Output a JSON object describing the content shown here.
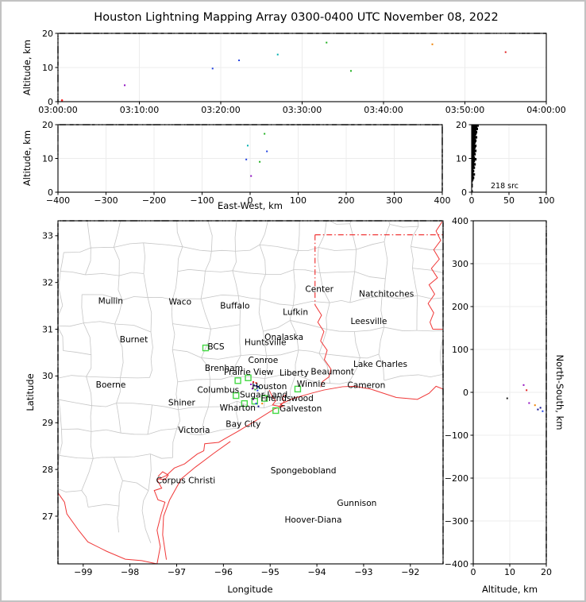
{
  "title": "Houston Lightning Mapping Array 0300-0400 UTC November 08, 2022",
  "palette": {
    "frame": "#000000",
    "grid": "#ececec",
    "county": "#c6c6c6",
    "border_red": "#f03838",
    "station_green": "#44d944",
    "noise_black": "#000000"
  },
  "chart_data": [
    {
      "id": "time-altitude",
      "type": "scatter",
      "xlabel": "",
      "ylabel": "Altitude, km",
      "x_range": [
        0,
        3600
      ],
      "x_tick_values": [
        0,
        600,
        1200,
        1800,
        2400,
        3000,
        3600
      ],
      "x_tick_labels": [
        "03:00:00",
        "03:10:00",
        "03:20:00",
        "03:30:00",
        "03:40:00",
        "03:50:00",
        "04:00:00"
      ],
      "y_range": [
        0,
        20
      ],
      "y_tick_values": [
        0,
        10,
        20
      ],
      "y_tick_labels": [
        "0",
        "10",
        "20"
      ],
      "noise_edges": [
        "top",
        "left",
        "bottom"
      ],
      "points": [
        [
          492,
          4.8,
          "#9010c0"
        ],
        [
          1140,
          9.7,
          "#2040e0"
        ],
        [
          1335,
          12.1,
          "#2040e0"
        ],
        [
          1620,
          13.8,
          "#00b0b0"
        ],
        [
          1980,
          17.3,
          "#20b020"
        ],
        [
          2160,
          9.0,
          "#20b020"
        ],
        [
          2760,
          16.8,
          "#f08000"
        ],
        [
          3300,
          14.5,
          "#e02020"
        ]
      ],
      "corner_dot": [
        30,
        0.4,
        "#ff2020"
      ]
    },
    {
      "id": "ew-altitude",
      "type": "scatter",
      "xlabel": "East-West, km",
      "ylabel": "Altitude, km",
      "x_range": [
        -400,
        400
      ],
      "x_tick_values": [
        -400,
        -300,
        -200,
        -100,
        0,
        100,
        200,
        300,
        400
      ],
      "x_tick_labels": [
        "−400",
        "−300",
        "−200",
        "−100",
        "0",
        "100",
        "200",
        "300",
        "400"
      ],
      "y_range": [
        0,
        20
      ],
      "y_tick_values": [
        0,
        10,
        20
      ],
      "y_tick_labels": [
        "0",
        "10",
        "20"
      ],
      "noise_edges": [
        "top",
        "right",
        "left-upper"
      ],
      "points": [
        [
          30,
          17.3,
          "#20b020"
        ],
        [
          35,
          12.1,
          "#2040e0"
        ],
        [
          -8,
          9.7,
          "#2040e0"
        ],
        [
          20,
          9.0,
          "#20b020"
        ],
        [
          2,
          4.8,
          "#9010c0"
        ],
        [
          -5,
          13.8,
          "#00b0b0"
        ]
      ]
    },
    {
      "id": "altitude-histogram",
      "type": "histogram-profile",
      "annotation": "218 src",
      "xlabel": "",
      "ylabel": "",
      "x_range": [
        0,
        100
      ],
      "x_tick_values": [
        0,
        50,
        100
      ],
      "x_tick_labels": [
        "0",
        "50",
        "100"
      ],
      "y_range": [
        0,
        20
      ],
      "y_tick_values": [
        0,
        10,
        20
      ],
      "y_tick_labels": [
        "0",
        "10",
        "20"
      ],
      "bin_km": 0.5,
      "counts_bottom_to_top": [
        1,
        0,
        0,
        1,
        1,
        0,
        1,
        2,
        3,
        2,
        4,
        2,
        3,
        2,
        4,
        3,
        5,
        3,
        4,
        6,
        4,
        3,
        5,
        4,
        6,
        4,
        5,
        6,
        4,
        5,
        6,
        5,
        7,
        5,
        6,
        7,
        6,
        8,
        7,
        9
      ]
    },
    {
      "id": "map",
      "type": "map-scatter",
      "xlabel": "Longitude",
      "ylabel": "Latitude",
      "lon_range": [
        -99.54,
        -91.3
      ],
      "lat_range": [
        25.98,
        33.32
      ],
      "x_tick_values": [
        -99,
        -98,
        -97,
        -96,
        -95,
        -94,
        -93,
        -92
      ],
      "x_tick_labels": [
        "−99",
        "−98",
        "−97",
        "−96",
        "−95",
        "−94",
        "−93",
        "−92"
      ],
      "y_tick_values": [
        27,
        28,
        29,
        30,
        31,
        32,
        33
      ],
      "y_tick_labels": [
        "27",
        "28",
        "29",
        "30",
        "31",
        "32",
        "33"
      ],
      "noise_edges": [
        "left",
        "right",
        "top"
      ],
      "county_grid": {
        "seed": 7,
        "cols": 14,
        "rows": 14,
        "jitter": 0.13
      },
      "cities": [
        {
          "n": "Mullin",
          "lon": -98.68,
          "lat": 31.6,
          "c": "#ffab7e"
        },
        {
          "n": "Waco",
          "lon": -97.17,
          "lat": 31.59,
          "c": "#1a1a1a"
        },
        {
          "n": "Buffalo",
          "lon": -96.07,
          "lat": 31.5,
          "c": "#1a1a1a"
        },
        {
          "n": "Lufkin",
          "lon": -94.73,
          "lat": 31.37,
          "c": "#1a1a1a"
        },
        {
          "n": "Center",
          "lon": -94.25,
          "lat": 31.86,
          "c": "#1a1a1a"
        },
        {
          "n": "Natchitoches",
          "lon": -93.1,
          "lat": 31.76,
          "c": "#1a1a1a"
        },
        {
          "n": "Leesville",
          "lon": -93.28,
          "lat": 31.17,
          "c": "#1a1a1a"
        },
        {
          "n": "Burnet",
          "lon": -98.22,
          "lat": 30.78,
          "c": "#1a1a1a"
        },
        {
          "n": "Onalaska",
          "lon": -95.12,
          "lat": 30.83,
          "c": "#1a1a1a"
        },
        {
          "n": "Huntsville",
          "lon": -95.55,
          "lat": 30.72,
          "c": "#1a1a1a"
        },
        {
          "n": "BCS",
          "lon": -96.34,
          "lat": 30.63,
          "c": "#9b1b1b"
        },
        {
          "n": "Conroe",
          "lon": -95.47,
          "lat": 30.34,
          "c": "#1a1a1a"
        },
        {
          "n": "Brenham",
          "lon": -96.4,
          "lat": 30.17,
          "c": "#1a1a1a"
        },
        {
          "n": "Prairie View",
          "lon": -95.99,
          "lat": 30.08,
          "c": "#1a1a1a"
        },
        {
          "n": "Liberty",
          "lon": -94.8,
          "lat": 30.07,
          "c": "#1a1a1a"
        },
        {
          "n": "Beaumont",
          "lon": -94.13,
          "lat": 30.09,
          "c": "#1a1a1a"
        },
        {
          "n": "Lake Charles",
          "lon": -93.22,
          "lat": 30.25,
          "c": "#1a1a1a"
        },
        {
          "n": "Boerne",
          "lon": -98.73,
          "lat": 29.81,
          "c": "#1a1a1a"
        },
        {
          "n": "Columbus",
          "lon": -96.56,
          "lat": 29.7,
          "c": "#1a1a1a"
        },
        {
          "n": "Houston",
          "lon": -95.39,
          "lat": 29.78,
          "c": "#ff9420"
        },
        {
          "n": "Winnie",
          "lon": -94.43,
          "lat": 29.83,
          "c": "#1a1a1a"
        },
        {
          "n": "Cameron",
          "lon": -93.35,
          "lat": 29.8,
          "c": "#1a1a1a"
        },
        {
          "n": "Shiner",
          "lon": -97.18,
          "lat": 29.43,
          "c": "#1a1a1a"
        },
        {
          "n": "Sugar Land",
          "lon": -95.65,
          "lat": 29.6,
          "c": "#1a1a1a"
        },
        {
          "n": "Friendswood",
          "lon": -95.2,
          "lat": 29.52,
          "c": "#1a1a1a"
        },
        {
          "n": "Wharton",
          "lon": -96.08,
          "lat": 29.32,
          "c": "#1a1a1a"
        },
        {
          "n": "Galveston",
          "lon": -94.8,
          "lat": 29.3,
          "c": "#1a1a1a"
        },
        {
          "n": "Bay City",
          "lon": -95.95,
          "lat": 28.97,
          "c": "#1a1a1a"
        },
        {
          "n": "Victoria",
          "lon": -96.97,
          "lat": 28.84,
          "c": "#1a1a1a"
        },
        {
          "n": "Corpus Christi",
          "lon": -97.44,
          "lat": 27.76,
          "c": "#1a1a1a"
        },
        {
          "n": "Spongebobland",
          "lon": -94.99,
          "lat": 27.98,
          "c": "#2233cc"
        },
        {
          "n": "Gunnison",
          "lon": -93.57,
          "lat": 27.28,
          "c": "#2233cc"
        },
        {
          "n": "Hoover-Diana",
          "lon": -94.69,
          "lat": 26.92,
          "c": "#2233cc"
        }
      ],
      "stations": [
        [
          -96.38,
          30.6
        ],
        [
          -95.69,
          29.9
        ],
        [
          -95.47,
          29.96
        ],
        [
          -95.73,
          29.58
        ],
        [
          -95.33,
          29.46
        ],
        [
          -95.55,
          29.41
        ],
        [
          -95.12,
          29.52
        ],
        [
          -94.88,
          29.26
        ],
        [
          -94.41,
          29.72
        ]
      ],
      "points": [
        [
          -95.36,
          29.87,
          "#e02020"
        ],
        [
          -95.3,
          29.85,
          "#e02020"
        ],
        [
          -95.41,
          29.82,
          "#9010c0"
        ],
        [
          -95.34,
          29.8,
          "#2040e0"
        ],
        [
          -95.29,
          29.79,
          "#2040e0"
        ],
        [
          -95.26,
          29.77,
          "#101090"
        ],
        [
          -95.38,
          29.73,
          "#9010c0"
        ],
        [
          -95.32,
          29.71,
          "#20b020"
        ],
        [
          -95.27,
          29.69,
          "#2040e0"
        ],
        [
          -95.23,
          29.74,
          "#00b0b0"
        ],
        [
          -95.36,
          29.5,
          "#9010c0"
        ],
        [
          -95.3,
          29.41,
          "#2040e0"
        ],
        [
          -95.25,
          29.35,
          "#101090"
        ],
        [
          -95.17,
          29.41,
          "#f08000"
        ]
      ],
      "boundaries": {
        "red_solid": [
          [
            [
              -97.42,
              25.98
            ],
            [
              -97.35,
              26.35
            ],
            [
              -97.42,
              26.7
            ],
            [
              -97.33,
              27.05
            ],
            [
              -97.25,
              27.3
            ],
            [
              -97.4,
              27.35
            ],
            [
              -97.48,
              27.55
            ],
            [
              -97.32,
              27.6
            ],
            [
              -97.42,
              27.78
            ],
            [
              -97.22,
              27.87
            ],
            [
              -97.05,
              28.03
            ],
            [
              -96.83,
              28.12
            ],
            [
              -96.56,
              28.33
            ],
            [
              -96.42,
              28.4
            ],
            [
              -96.4,
              28.55
            ],
            [
              -96.1,
              28.58
            ],
            [
              -95.98,
              28.65
            ],
            [
              -95.68,
              28.82
            ],
            [
              -95.3,
              29.05
            ],
            [
              -94.9,
              29.3
            ],
            [
              -94.72,
              29.35
            ],
            [
              -94.78,
              29.4
            ],
            [
              -94.5,
              29.52
            ],
            [
              -94.12,
              29.63
            ],
            [
              -93.85,
              29.7
            ],
            [
              -93.45,
              29.77
            ],
            [
              -93.2,
              29.78
            ],
            [
              -92.85,
              29.72
            ],
            [
              -92.3,
              29.54
            ],
            [
              -91.85,
              29.5
            ],
            [
              -91.6,
              29.63
            ],
            [
              -91.45,
              29.78
            ],
            [
              -91.3,
              29.72
            ]
          ],
          [
            [
              -95.02,
              29.7
            ],
            [
              -94.95,
              29.55
            ],
            [
              -94.88,
              29.47
            ],
            [
              -94.95,
              29.38
            ],
            [
              -94.8,
              29.35
            ],
            [
              -94.7,
              29.45
            ],
            [
              -94.74,
              29.55
            ],
            [
              -94.67,
              29.6
            ]
          ],
          [
            [
              -97.4,
              27.8
            ],
            [
              -97.25,
              27.78
            ],
            [
              -97.18,
              27.88
            ],
            [
              -97.3,
              27.95
            ],
            [
              -97.4,
              27.85
            ]
          ],
          [
            [
              -97.22,
              26.07
            ],
            [
              -97.3,
              26.6
            ],
            [
              -97.28,
              27.0
            ],
            [
              -97.15,
              27.35
            ],
            [
              -96.9,
              27.8
            ],
            [
              -96.6,
              28.05
            ],
            [
              -96.2,
              28.35
            ],
            [
              -95.85,
              28.6
            ]
          ],
          [
            [
              -99.54,
              27.5
            ],
            [
              -99.4,
              27.3
            ],
            [
              -99.35,
              27.05
            ],
            [
              -99.1,
              26.7
            ],
            [
              -98.9,
              26.45
            ],
            [
              -98.5,
              26.25
            ],
            [
              -98.1,
              26.08
            ],
            [
              -97.75,
              26.05
            ],
            [
              -97.42,
              25.98
            ]
          ],
          [
            [
              -94.04,
              31.52
            ],
            [
              -93.9,
              31.3
            ],
            [
              -93.98,
              31.15
            ],
            [
              -93.85,
              30.95
            ],
            [
              -93.92,
              30.75
            ],
            [
              -93.78,
              30.55
            ],
            [
              -93.84,
              30.35
            ],
            [
              -93.7,
              30.15
            ],
            [
              -93.74,
              29.98
            ],
            [
              -93.88,
              29.88
            ],
            [
              -93.92,
              29.76
            ]
          ],
          [
            [
              -91.32,
              33.3
            ],
            [
              -91.45,
              33.1
            ],
            [
              -91.35,
              32.9
            ],
            [
              -91.5,
              32.7
            ],
            [
              -91.38,
              32.5
            ],
            [
              -91.55,
              32.3
            ],
            [
              -91.42,
              32.1
            ],
            [
              -91.6,
              31.95
            ],
            [
              -91.48,
              31.75
            ],
            [
              -91.62,
              31.55
            ],
            [
              -91.5,
              31.35
            ],
            [
              -91.58,
              31.15
            ],
            [
              -91.52,
              31.0
            ]
          ],
          [
            [
              -91.52,
              31.0
            ],
            [
              -91.3,
              31.0
            ]
          ]
        ],
        "red_dashed": [
          [
            [
              -94.04,
              33.02
            ],
            [
              -91.3,
              33.02
            ]
          ],
          [
            [
              -94.04,
              33.02
            ],
            [
              -94.04,
              31.52
            ]
          ]
        ]
      }
    },
    {
      "id": "ns-altitude",
      "type": "scatter",
      "xlabel": "Altitude, km",
      "ylabel": "North-South, km",
      "x_range": [
        0,
        20
      ],
      "x_tick_values": [
        0,
        10,
        20
      ],
      "x_tick_labels": [
        "0",
        "10",
        "20"
      ],
      "y_range": [
        -400,
        400
      ],
      "y_tick_values": [
        400,
        300,
        200,
        100,
        0,
        -100,
        -200,
        -300,
        -400
      ],
      "y_tick_labels": [
        "400",
        "300",
        "200",
        "100",
        "0",
        "−100",
        "−200",
        "−300",
        "−400"
      ],
      "noise_edges": [
        "right"
      ],
      "points": [
        [
          13.8,
          17,
          "#9010c0"
        ],
        [
          14.6,
          5,
          "#e02020"
        ],
        [
          9.3,
          -14,
          "#1a1a1a"
        ],
        [
          15.3,
          -25,
          "#9010c0"
        ],
        [
          16.9,
          -30,
          "#f08000"
        ],
        [
          17.7,
          -40,
          "#101090"
        ],
        [
          18.4,
          -36,
          "#101090"
        ],
        [
          19.0,
          -44,
          "#2040e0"
        ]
      ]
    }
  ]
}
